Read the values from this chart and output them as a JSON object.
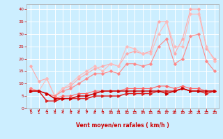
{
  "xlabel": "Vent moyen/en rafales ( km/h )",
  "xlim": [
    -0.5,
    23.5
  ],
  "ylim": [
    0,
    42
  ],
  "yticks": [
    0,
    5,
    10,
    15,
    20,
    25,
    30,
    35,
    40
  ],
  "xticks": [
    0,
    1,
    2,
    3,
    4,
    5,
    6,
    7,
    8,
    9,
    10,
    11,
    12,
    13,
    14,
    15,
    16,
    17,
    18,
    19,
    20,
    21,
    22,
    23
  ],
  "bg_color": "#cceeff",
  "grid_color": "#ffffff",
  "lines": [
    {
      "color": "#ffaaaa",
      "lw": 0.8,
      "marker": "D",
      "ms": 1.8,
      "data": [
        17,
        11,
        12,
        5,
        8,
        9,
        12,
        14,
        16,
        17,
        18,
        17,
        22,
        23,
        22,
        23,
        35,
        35,
        22,
        28,
        40,
        40,
        24,
        20
      ]
    },
    {
      "color": "#ffbbbb",
      "lw": 0.8,
      "marker": "D",
      "ms": 1.8,
      "data": [
        8,
        7,
        12,
        5,
        8,
        10,
        13,
        15,
        17,
        15,
        18,
        17,
        25,
        24,
        22,
        22,
        30,
        35,
        25,
        25,
        38,
        38,
        25,
        19
      ]
    },
    {
      "color": "#ff8888",
      "lw": 0.8,
      "marker": "D",
      "ms": 1.8,
      "data": [
        8,
        7,
        6,
        5,
        7,
        8,
        10,
        12,
        14,
        14,
        15,
        14,
        18,
        18,
        17,
        18,
        25,
        28,
        18,
        20,
        29,
        30,
        19,
        15
      ]
    },
    {
      "color": "#ff6666",
      "lw": 0.8,
      "marker": "D",
      "ms": 1.8,
      "data": [
        7,
        7,
        6,
        4,
        5,
        5,
        6,
        6,
        7,
        7,
        7,
        7,
        8,
        8,
        8,
        8,
        9,
        9,
        8,
        9,
        8,
        8,
        7,
        7
      ]
    },
    {
      "color": "#dd2222",
      "lw": 1.1,
      "marker": ">",
      "ms": 2.5,
      "data": [
        7,
        7,
        3,
        3,
        4,
        4,
        4,
        4,
        5,
        5,
        5,
        5,
        6,
        6,
        6,
        6,
        7,
        7,
        7,
        8,
        7,
        7,
        6,
        7
      ]
    },
    {
      "color": "#cc0000",
      "lw": 1.1,
      "marker": ">",
      "ms": 2.5,
      "data": [
        7,
        7,
        6,
        4,
        4,
        4,
        5,
        5,
        6,
        7,
        7,
        7,
        7,
        7,
        7,
        7,
        7,
        6,
        7,
        8,
        7,
        7,
        7,
        7
      ]
    }
  ],
  "arrow_angles": [
    180,
    180,
    135,
    45,
    45,
    90,
    45,
    45,
    90,
    135,
    45,
    45,
    45,
    135,
    45,
    135,
    135,
    45,
    45,
    135,
    90,
    90,
    135,
    135
  ],
  "arrow_color": "#cc0000",
  "tick_color": "#cc0000",
  "label_color": "#cc0000"
}
